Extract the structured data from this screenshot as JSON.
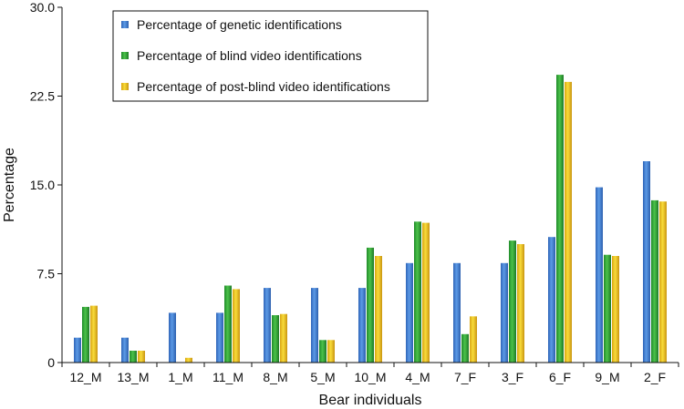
{
  "chart_data": {
    "type": "bar",
    "xlabel": "Bear individuals",
    "ylabel": "Percentage",
    "ylim": [
      0,
      30
    ],
    "yticks": [
      "0",
      "7.5",
      "15.0",
      "22.5",
      "30.0"
    ],
    "grid": false,
    "legend_position": "top-left",
    "categories": [
      "12_M",
      "13_M",
      "1_M",
      "11_M",
      "8_M",
      "5_M",
      "10_M",
      "4_M",
      "7_F",
      "3_F",
      "6_F",
      "9_M",
      "2_F"
    ],
    "series": [
      {
        "name": "Percentage of genetic identifications",
        "color": "#3f7fd6",
        "values": [
          2.1,
          2.1,
          4.2,
          4.2,
          6.3,
          6.3,
          6.3,
          8.4,
          8.4,
          8.4,
          10.6,
          14.8,
          17.0
        ]
      },
      {
        "name": "Percentage of blind video identifications",
        "color": "#2ea02e",
        "values": [
          4.7,
          1.0,
          0.0,
          6.5,
          4.0,
          1.9,
          9.7,
          11.9,
          2.4,
          10.3,
          24.3,
          9.1,
          13.7
        ]
      },
      {
        "name": "Percentage of post-blind video identifications",
        "color": "#ecc31f",
        "values": [
          4.8,
          1.0,
          0.4,
          6.2,
          4.1,
          1.9,
          9.0,
          11.8,
          3.9,
          10.0,
          23.7,
          9.0,
          13.6
        ]
      }
    ]
  }
}
